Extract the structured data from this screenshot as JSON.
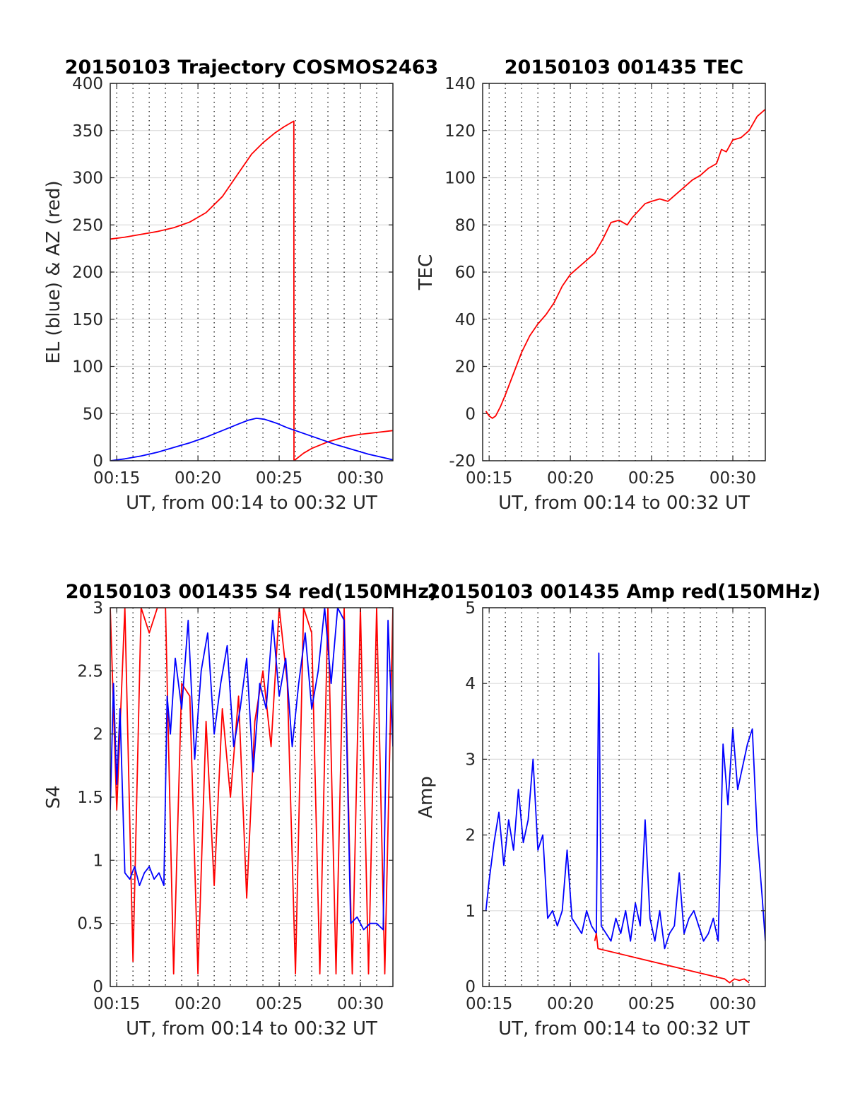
{
  "chart_data": [
    {
      "type": "line",
      "title": "20150103 Trajectory COSMOS2463",
      "xlabel": "UT, from 00:14 to 00:32 UT",
      "ylabel": "EL (blue) & AZ (red)",
      "x_tick_labels": [
        "00:15",
        "00:20",
        "00:25",
        "00:30"
      ],
      "y_tick_labels": [
        "0",
        "50",
        "100",
        "150",
        "200",
        "250",
        "300",
        "350",
        "400"
      ],
      "ylim": [
        0,
        400
      ],
      "xlim_minutes": [
        14.6,
        32.0
      ],
      "grid": "horizontal solid, vertical dotted",
      "series": [
        {
          "color": "#ff0000",
          "x_minutes": [
            14.6,
            15.5,
            16.5,
            17.5,
            18.5,
            19.5,
            20.5,
            21.5,
            22.5,
            23.3,
            24.0,
            24.7,
            25.3,
            25.9,
            25.91,
            26.5,
            27.0,
            28.0,
            29.0,
            30.0,
            31.0,
            32.0
          ],
          "values": [
            235,
            237,
            240,
            243,
            247,
            253,
            263,
            280,
            305,
            325,
            337,
            347,
            354,
            360,
            0,
            8,
            13,
            20,
            25,
            28,
            30,
            32
          ]
        },
        {
          "color": "#0000ff",
          "x_minutes": [
            14.6,
            15.5,
            16.5,
            17.5,
            18.5,
            19.5,
            20.5,
            21.5,
            22.5,
            23.1,
            23.6,
            24.1,
            24.8,
            25.5,
            26.5,
            27.5,
            28.5,
            29.5,
            30.5,
            31.5,
            32.0
          ],
          "values": [
            0,
            2,
            5,
            9,
            14,
            19,
            25,
            32,
            39,
            43,
            45,
            44,
            40,
            35,
            29,
            23,
            17,
            12,
            7,
            3,
            1
          ]
        }
      ]
    },
    {
      "type": "line",
      "title": "20150103 001435 TEC",
      "xlabel": "UT, from 00:14 to 00:32 UT",
      "ylabel": "TEC",
      "x_tick_labels": [
        "00:15",
        "00:20",
        "00:25",
        "00:30"
      ],
      "y_tick_labels": [
        "-20",
        "0",
        "20",
        "40",
        "60",
        "80",
        "100",
        "120",
        "140"
      ],
      "ylim": [
        -20,
        140
      ],
      "xlim_minutes": [
        14.6,
        32.0
      ],
      "grid": "horizontal solid, vertical dotted",
      "series": [
        {
          "color": "#ff0000",
          "x_minutes": [
            14.8,
            15.0,
            15.2,
            15.4,
            15.7,
            16.0,
            16.5,
            17.0,
            17.5,
            18.0,
            18.5,
            19.0,
            19.5,
            20.0,
            20.5,
            21.0,
            21.5,
            22.0,
            22.5,
            23.0,
            23.5,
            23.8,
            24.2,
            24.6,
            25.0,
            25.5,
            26.0,
            26.5,
            27.0,
            27.5,
            28.0,
            28.5,
            29.0,
            29.3,
            29.6,
            30.0,
            30.5,
            31.0,
            31.5,
            32.0
          ],
          "values": [
            1,
            -1,
            -2,
            -1,
            3,
            8,
            17,
            26,
            33,
            38,
            42,
            47,
            54,
            59,
            62,
            65,
            68,
            74,
            81,
            82,
            80,
            83,
            86,
            89,
            90,
            91,
            90,
            93,
            96,
            99,
            101,
            104,
            106,
            112,
            111,
            116,
            117,
            120,
            126,
            129
          ]
        }
      ]
    },
    {
      "type": "line",
      "title": "20150103 001435 S4 red(150MHz)",
      "xlabel": "UT, from 00:14 to 00:32 UT",
      "ylabel": "S4",
      "x_tick_labels": [
        "00:15",
        "00:20",
        "00:25",
        "00:30"
      ],
      "y_tick_labels": [
        "0",
        "0.5",
        "1",
        "1.5",
        "2",
        "2.5",
        "3"
      ],
      "ylim": [
        0,
        3
      ],
      "xlim_minutes": [
        14.6,
        32.0
      ],
      "grid": "horizontal solid, vertical dotted",
      "series": [
        {
          "color": "#ff0000",
          "x_minutes": [
            14.6,
            15.0,
            15.5,
            16.0,
            16.5,
            17.0,
            17.5,
            18.0,
            18.5,
            19.0,
            19.5,
            20.0,
            20.5,
            21.0,
            21.5,
            22.0,
            22.5,
            23.0,
            23.5,
            24.0,
            24.5,
            25.0,
            25.5,
            26.0,
            26.5,
            27.0,
            27.5,
            28.0,
            28.5,
            29.0,
            29.5,
            30.0,
            30.5,
            31.0,
            31.5,
            32.0
          ],
          "values": [
            3,
            1.4,
            3,
            0.2,
            3,
            2.8,
            3,
            3,
            0.1,
            2.4,
            2.3,
            0.1,
            2.1,
            0.8,
            2.2,
            1.5,
            2.3,
            0.7,
            2.1,
            2.5,
            1.9,
            3,
            2.4,
            0.1,
            3,
            2.8,
            0.1,
            3,
            0.1,
            3,
            0.1,
            3,
            0.1,
            3,
            0.1,
            3
          ]
        },
        {
          "color": "#0000ff",
          "x_minutes": [
            14.6,
            14.8,
            15.0,
            15.2,
            15.5,
            15.8,
            16.1,
            16.4,
            16.7,
            17.0,
            17.3,
            17.6,
            17.9,
            18.1,
            18.3,
            18.6,
            19.0,
            19.4,
            19.8,
            20.2,
            20.6,
            21.0,
            21.4,
            21.8,
            22.2,
            22.6,
            23.0,
            23.4,
            23.8,
            24.2,
            24.6,
            25.0,
            25.4,
            25.8,
            26.2,
            26.6,
            27.0,
            27.4,
            27.8,
            28.2,
            28.6,
            29.0,
            29.4,
            29.8,
            30.2,
            30.6,
            31.0,
            31.4,
            31.7,
            32.0
          ],
          "values": [
            1.4,
            2.4,
            1.6,
            2.2,
            0.9,
            0.85,
            0.95,
            0.8,
            0.9,
            0.95,
            0.85,
            0.9,
            0.8,
            2.3,
            2.0,
            2.6,
            2.2,
            2.9,
            1.8,
            2.5,
            2.8,
            2.0,
            2.4,
            2.7,
            1.9,
            2.2,
            2.6,
            1.7,
            2.4,
            2.2,
            2.9,
            2.3,
            2.6,
            1.9,
            2.4,
            2.8,
            2.2,
            2.5,
            3,
            2.4,
            3,
            2.9,
            0.5,
            0.55,
            0.45,
            0.5,
            0.5,
            0.45,
            2.9,
            1.9
          ]
        }
      ]
    },
    {
      "type": "line",
      "title": "20150103 001435 Amp red(150MHz)",
      "xlabel": "UT, from 00:14 to 00:32 UT",
      "ylabel": "Amp",
      "x_tick_labels": [
        "00:15",
        "00:20",
        "00:25",
        "00:30"
      ],
      "y_tick_labels": [
        "0",
        "1",
        "2",
        "3",
        "4",
        "5"
      ],
      "ylim": [
        0,
        5
      ],
      "xlim_minutes": [
        14.6,
        32.0
      ],
      "grid": "horizontal solid, vertical dotted",
      "series": [
        {
          "color": "#0000ff",
          "x_minutes": [
            14.8,
            15.0,
            15.3,
            15.6,
            15.9,
            16.2,
            16.5,
            16.8,
            17.1,
            17.4,
            17.7,
            18.0,
            18.3,
            18.6,
            18.9,
            19.2,
            19.5,
            19.8,
            20.1,
            20.4,
            20.7,
            21.0,
            21.3,
            21.6,
            21.75,
            21.9,
            22.2,
            22.5,
            22.8,
            23.1,
            23.4,
            23.7,
            24.0,
            24.3,
            24.6,
            24.9,
            25.2,
            25.5,
            25.8,
            26.1,
            26.4,
            26.7,
            27.0,
            27.3,
            27.6,
            27.9,
            28.2,
            28.5,
            28.8,
            29.1,
            29.4,
            29.7,
            30.0,
            30.3,
            30.6,
            30.9,
            31.2,
            31.5,
            31.8,
            32.0
          ],
          "values": [
            1.0,
            1.4,
            1.9,
            2.3,
            1.6,
            2.2,
            1.8,
            2.6,
            1.9,
            2.2,
            3.0,
            1.8,
            2.0,
            0.9,
            1.0,
            0.8,
            1.0,
            1.8,
            0.9,
            0.8,
            0.7,
            1.0,
            0.8,
            0.7,
            4.4,
            0.8,
            0.7,
            0.6,
            0.9,
            0.7,
            1.0,
            0.6,
            1.1,
            0.8,
            2.2,
            0.9,
            0.6,
            1.0,
            0.5,
            0.7,
            0.8,
            1.5,
            0.7,
            0.9,
            1.0,
            0.8,
            0.6,
            0.7,
            0.9,
            0.6,
            3.2,
            2.4,
            3.4,
            2.6,
            2.9,
            3.2,
            3.4,
            2.0,
            1.2,
            0.6
          ]
        },
        {
          "color": "#ff0000",
          "x_minutes": [
            21.5,
            21.6,
            21.7,
            29.5,
            29.8,
            30.1,
            30.4,
            30.7,
            31.0
          ],
          "values": [
            0.6,
            0.7,
            0.5,
            0.1,
            0.05,
            0.1,
            0.08,
            0.1,
            0.05
          ]
        }
      ]
    }
  ]
}
